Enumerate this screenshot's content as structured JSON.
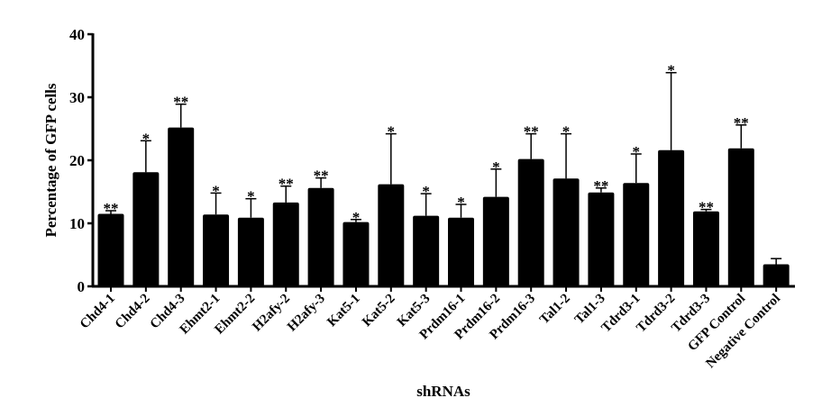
{
  "chart_data": {
    "type": "bar",
    "title": "",
    "xlabel": "shRNAs",
    "ylabel": "Percentage of GFP cells",
    "ylim": [
      0,
      40
    ],
    "yticks": [
      0,
      10,
      20,
      30,
      40
    ],
    "grid": false,
    "bar_color": "#000000",
    "categories": [
      "Chd4-1",
      "Chd4-2",
      "Chd4-3",
      "Ehmt2-1",
      "Ehmt2-2",
      "H2afy-2",
      "H2afy-3",
      "Kat5-1",
      "Kat5-2",
      "Kat5-3",
      "Prdm16-1",
      "Prdm16-2",
      "Prdm16-3",
      "Tal1-2",
      "Tal1-3",
      "Tdrd3-1",
      "Tdrd3-2",
      "Tdrd3-3",
      "GFP Control",
      "Negative Control"
    ],
    "values": [
      11.5,
      18.1,
      25.2,
      11.4,
      10.9,
      13.3,
      15.6,
      10.2,
      16.2,
      11.2,
      10.9,
      14.2,
      20.2,
      17.1,
      14.9,
      16.4,
      21.6,
      11.9,
      21.9,
      3.5
    ],
    "error_upper": [
      12.0,
      23.1,
      28.9,
      14.8,
      13.9,
      15.9,
      17.2,
      10.6,
      24.2,
      14.7,
      13.0,
      18.6,
      24.2,
      24.2,
      15.6,
      21.0,
      33.9,
      12.2,
      25.6,
      4.4
    ],
    "significance": [
      "**",
      "*",
      "**",
      "*",
      "*",
      "**",
      "**",
      "*",
      "*",
      "*",
      "*",
      "*",
      "**",
      "*",
      "**",
      "*",
      "*",
      "**",
      "**",
      ""
    ]
  }
}
